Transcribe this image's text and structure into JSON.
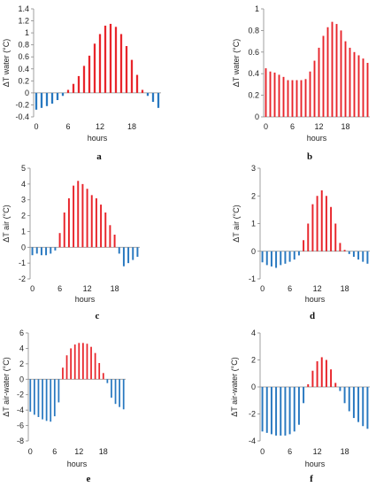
{
  "colors": {
    "positive": "#e8252b",
    "negative": "#2878c0"
  },
  "chart_data": [
    {
      "type": "bar",
      "panel": "a",
      "ylabel": "ΔT water (°C)",
      "xlabel": "hours",
      "ylim": [
        -0.4,
        1.4
      ],
      "yticks": [
        "-0.4",
        "-0.2",
        "0",
        "0.2",
        "0.4",
        "0.6",
        "0.8",
        "1",
        "1.2",
        "1.4"
      ],
      "xlim": [
        -0.5,
        23.5
      ],
      "xticks": [
        "0",
        "6",
        "12",
        "18"
      ],
      "x": [
        0,
        1,
        2,
        3,
        4,
        5,
        6,
        7,
        8,
        9,
        10,
        11,
        12,
        13,
        14,
        15,
        16,
        17,
        18,
        19,
        20,
        21,
        22,
        23
      ],
      "values": [
        -0.28,
        -0.25,
        -0.22,
        -0.18,
        -0.12,
        -0.05,
        0.05,
        0.15,
        0.28,
        0.45,
        0.62,
        0.82,
        0.98,
        1.12,
        1.15,
        1.1,
        0.98,
        0.78,
        0.55,
        0.3,
        0.05,
        -0.05,
        -0.15,
        -0.25
      ]
    },
    {
      "type": "bar",
      "panel": "b",
      "ylabel": "ΔT water (°C)",
      "xlabel": "hours",
      "ylim": [
        0,
        1
      ],
      "yticks": [
        "0",
        "0.2",
        "0.4",
        "0.6",
        "0.8",
        "1"
      ],
      "xlim": [
        -0.5,
        23.5
      ],
      "xticks": [
        "0",
        "6",
        "12",
        "18"
      ],
      "x": [
        0,
        1,
        2,
        3,
        4,
        5,
        6,
        7,
        8,
        9,
        10,
        11,
        12,
        13,
        14,
        15,
        16,
        17,
        18,
        19,
        20,
        21,
        22,
        23
      ],
      "values": [
        0.45,
        0.42,
        0.41,
        0.39,
        0.37,
        0.34,
        0.34,
        0.34,
        0.34,
        0.35,
        0.42,
        0.52,
        0.64,
        0.75,
        0.83,
        0.88,
        0.86,
        0.8,
        0.7,
        0.64,
        0.6,
        0.57,
        0.54,
        0.5
      ]
    },
    {
      "type": "bar",
      "panel": "c",
      "ylabel": "ΔT air (°C)",
      "xlabel": "hours",
      "ylim": [
        -2,
        5
      ],
      "yticks": [
        "-2",
        "-1",
        "0",
        "1",
        "2",
        "3",
        "4",
        "5"
      ],
      "xlim": [
        -0.5,
        23.5
      ],
      "xticks": [
        "0",
        "6",
        "12",
        "18"
      ],
      "x": [
        0,
        1,
        2,
        3,
        4,
        5,
        6,
        7,
        8,
        9,
        10,
        11,
        12,
        13,
        14,
        15,
        16,
        17,
        18,
        19,
        20,
        21,
        22,
        23
      ],
      "values": [
        -0.5,
        -0.4,
        -0.5,
        -0.5,
        -0.4,
        -0.2,
        0.9,
        2.2,
        3.1,
        3.9,
        4.2,
        4.0,
        3.7,
        3.3,
        3.1,
        2.7,
        2.2,
        1.4,
        0.8,
        -0.4,
        -1.2,
        -1.0,
        -0.8,
        -0.6
      ]
    },
    {
      "type": "bar",
      "panel": "d",
      "ylabel": "ΔT air (°C)",
      "xlabel": "hours",
      "ylim": [
        -1,
        3
      ],
      "yticks": [
        "-1",
        "0",
        "1",
        "2",
        "3"
      ],
      "xlim": [
        -0.5,
        23.5
      ],
      "xticks": [
        "0",
        "6",
        "12",
        "18"
      ],
      "x": [
        0,
        1,
        2,
        3,
        4,
        5,
        6,
        7,
        8,
        9,
        10,
        11,
        12,
        13,
        14,
        15,
        16,
        17,
        18,
        19,
        20,
        21,
        22,
        23
      ],
      "values": [
        -0.4,
        -0.5,
        -0.55,
        -0.6,
        -0.5,
        -0.45,
        -0.38,
        -0.3,
        -0.15,
        0.4,
        1.0,
        1.7,
        2.0,
        2.2,
        2.0,
        1.6,
        1.0,
        0.3,
        0.05,
        -0.1,
        -0.2,
        -0.3,
        -0.38,
        -0.45
      ]
    },
    {
      "type": "bar",
      "panel": "e",
      "ylabel": "ΔT air-water (°C)",
      "xlabel": "hours",
      "ylim": [
        -8,
        6
      ],
      "yticks": [
        "-8",
        "-6",
        "-4",
        "-2",
        "0",
        "2",
        "4",
        "6"
      ],
      "xlim": [
        -0.5,
        23.5
      ],
      "xticks": [
        "0",
        "6",
        "12",
        "18"
      ],
      "x": [
        0,
        1,
        2,
        3,
        4,
        5,
        6,
        7,
        8,
        9,
        10,
        11,
        12,
        13,
        14,
        15,
        16,
        17,
        18,
        19,
        20,
        21,
        22,
        23
      ],
      "values": [
        -4.2,
        -4.6,
        -4.9,
        -5.2,
        -5.4,
        -5.5,
        -4.8,
        -3.0,
        1.5,
        3.1,
        4.0,
        4.5,
        4.7,
        4.7,
        4.6,
        4.2,
        3.4,
        2.1,
        0.8,
        -0.5,
        -2.4,
        -3.2,
        -3.6,
        -3.9
      ]
    },
    {
      "type": "bar",
      "panel": "f",
      "ylabel": "ΔT air-water (°C)",
      "xlabel": "hours",
      "ylim": [
        -4,
        4
      ],
      "yticks": [
        "-4",
        "-2",
        "0",
        "2",
        "4"
      ],
      "xlim": [
        -0.5,
        23.5
      ],
      "xticks": [
        "0",
        "6",
        "12",
        "18"
      ],
      "x": [
        0,
        1,
        2,
        3,
        4,
        5,
        6,
        7,
        8,
        9,
        10,
        11,
        12,
        13,
        14,
        15,
        16,
        17,
        18,
        19,
        20,
        21,
        22,
        23
      ],
      "values": [
        -3.3,
        -3.4,
        -3.5,
        -3.6,
        -3.6,
        -3.6,
        -3.5,
        -3.3,
        -2.8,
        -1.2,
        0.2,
        1.2,
        1.9,
        2.2,
        2.0,
        1.3,
        0.3,
        -0.3,
        -1.2,
        -1.8,
        -2.3,
        -2.6,
        -2.9,
        -3.1
      ]
    }
  ]
}
